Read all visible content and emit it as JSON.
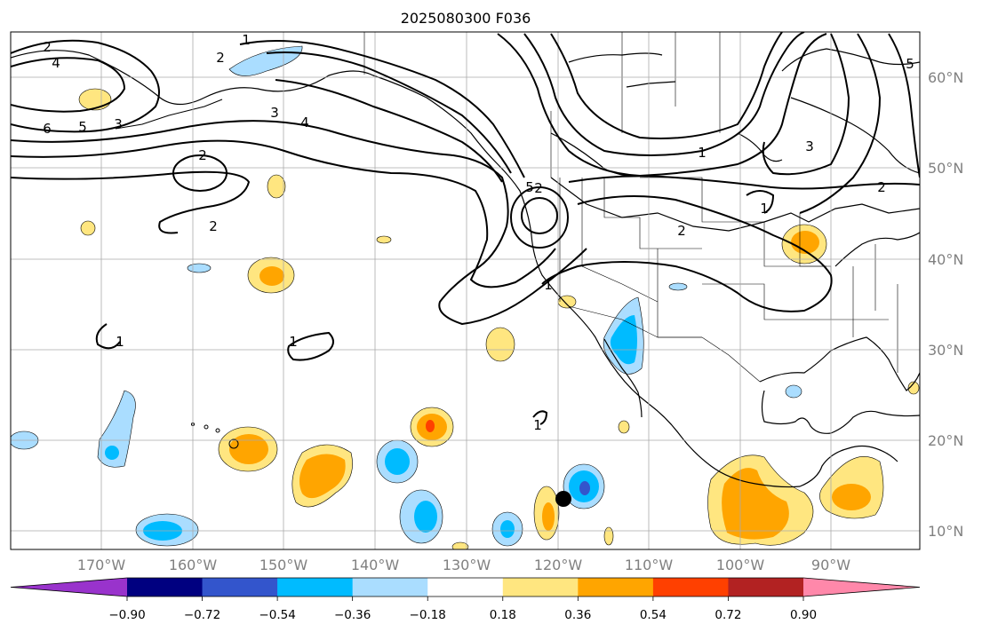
{
  "title": "2025080300 F036",
  "map": {
    "lon_range": [
      -180,
      -80
    ],
    "lat_range": [
      8,
      65
    ],
    "lon_ticks": [
      "170°W",
      "160°W",
      "150°W",
      "140°W",
      "130°W",
      "120°W",
      "110°W",
      "100°W",
      "90°W"
    ],
    "lat_ticks": [
      "10°N",
      "20°N",
      "30°N",
      "40°N",
      "50°N",
      "60°N"
    ],
    "grid": true
  },
  "contour_labels": [
    "2",
    "4",
    "6",
    "5",
    "3",
    "2",
    "1",
    "2",
    "3",
    "4",
    "2",
    "5",
    "1",
    "2",
    "1",
    "1",
    "1",
    "3",
    "2",
    "1",
    "2",
    "1",
    "5"
  ],
  "marker": {
    "label": "storm position",
    "lon": -119.5,
    "lat": 13.5,
    "color": "#000000"
  },
  "colorbar": {
    "ticks": [
      "−0.90",
      "−0.72",
      "−0.54",
      "−0.36",
      "−0.18",
      "0.18",
      "0.36",
      "0.54",
      "0.72",
      "0.90"
    ],
    "colors": [
      "#9933cc",
      "#000080",
      "#3355cc",
      "#00bbff",
      "#aaddff",
      "#ffffff",
      "#ffe680",
      "#ffa500",
      "#ff4000",
      "#b22222",
      "#ff88aa"
    ]
  }
}
